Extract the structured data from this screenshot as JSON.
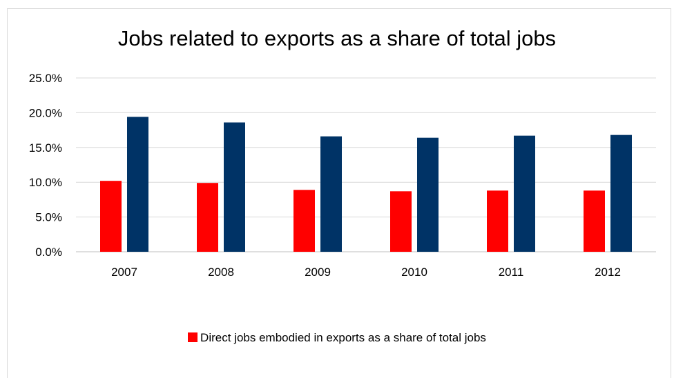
{
  "chart_data": {
    "type": "bar",
    "title": "Jobs related to exports as a share of total jobs",
    "categories": [
      "2007",
      "2008",
      "2009",
      "2010",
      "2011",
      "2012"
    ],
    "series": [
      {
        "name": "Direct jobs embodied in exports as a share of total jobs",
        "values": [
          10.2,
          9.9,
          8.9,
          8.7,
          8.8,
          8.8
        ],
        "color": "#ff0000"
      },
      {
        "values": [
          19.4,
          18.6,
          16.6,
          16.4,
          16.7,
          16.8
        ],
        "color": "#003366"
      }
    ],
    "yticks": [
      "0.0%",
      "5.0%",
      "10.0%",
      "15.0%",
      "20.0%",
      "25.0%"
    ],
    "ylim": [
      0,
      25
    ],
    "grid": true,
    "legend_position": "bottom"
  }
}
